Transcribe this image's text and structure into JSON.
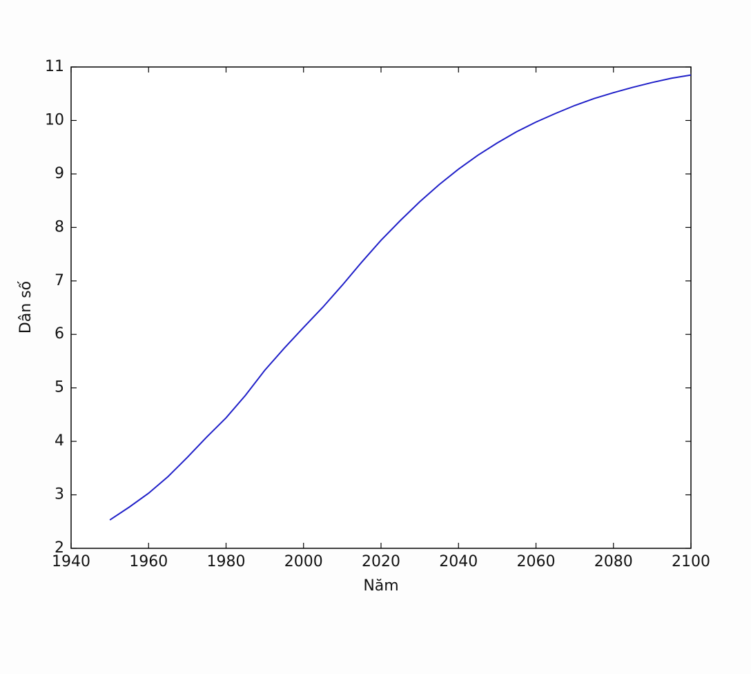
{
  "chart_data": {
    "type": "line",
    "x_label": "Năm",
    "y_label": "Dân số",
    "x": [
      1950,
      1955,
      1960,
      1965,
      1970,
      1975,
      1980,
      1985,
      1990,
      1995,
      2000,
      2005,
      2010,
      2015,
      2020,
      2025,
      2030,
      2035,
      2040,
      2045,
      2050,
      2055,
      2060,
      2065,
      2070,
      2075,
      2080,
      2085,
      2090,
      2095,
      2100
    ],
    "series": [
      {
        "color": "#1f1fc8",
        "values": [
          2.53,
          2.77,
          3.03,
          3.34,
          3.7,
          4.08,
          4.44,
          4.86,
          5.33,
          5.74,
          6.13,
          6.51,
          6.92,
          7.35,
          7.76,
          8.13,
          8.48,
          8.8,
          9.09,
          9.35,
          9.58,
          9.79,
          9.97,
          10.13,
          10.28,
          10.41,
          10.52,
          10.62,
          10.71,
          10.79,
          10.85
        ]
      }
    ],
    "xlim": [
      1940,
      2100
    ],
    "xticks": [
      1940,
      1960,
      1980,
      2000,
      2020,
      2040,
      2060,
      2080,
      2100
    ],
    "ylim": [
      2,
      11
    ],
    "yticks": [
      2,
      3,
      4,
      5,
      6,
      7,
      8,
      9,
      10,
      11
    ]
  }
}
